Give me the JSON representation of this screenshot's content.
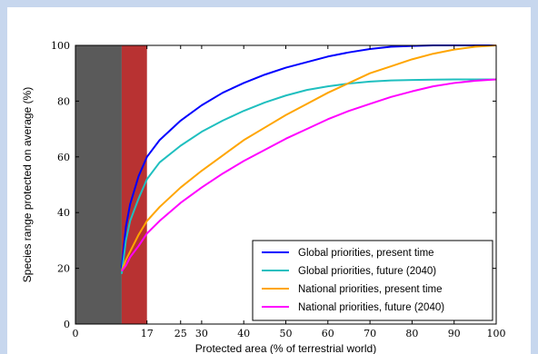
{
  "chart_data": {
    "type": "line",
    "xlabel": "Protected area (% of terrestrial world)",
    "ylabel": "Species range protected on average (%)",
    "xlim": [
      0,
      100
    ],
    "ylim": [
      0,
      100
    ],
    "x_ticks": [
      0,
      17,
      25,
      30,
      40,
      50,
      60,
      70,
      80,
      90,
      100
    ],
    "y_ticks": [
      0,
      20,
      40,
      60,
      80,
      100
    ],
    "x_tick_labels": [
      "0",
      "17",
      "25",
      "30",
      "40",
      "50",
      "60",
      "70",
      "80",
      "90",
      "100"
    ],
    "y_tick_labels": [
      "0",
      "20",
      "40",
      "60",
      "80",
      "100"
    ],
    "shaded_regions": [
      {
        "x": [
          0,
          11
        ],
        "color": "#5a5a5a"
      },
      {
        "x": [
          11,
          17
        ],
        "color": "#b83232"
      }
    ],
    "legend_position": "bottom-right",
    "grid": false,
    "series": [
      {
        "name": "Global priorities, present time",
        "color": "#0000ff",
        "x": [
          11,
          12,
          13,
          15,
          17,
          20,
          25,
          30,
          35,
          40,
          45,
          50,
          55,
          60,
          65,
          70,
          75,
          80,
          85,
          90,
          95,
          100
        ],
        "y": [
          20,
          35,
          43,
          53,
          60,
          66,
          73,
          78.5,
          83,
          86.5,
          89.5,
          92,
          94,
          96,
          97.5,
          98.7,
          99.5,
          99.8,
          100,
          100,
          100,
          100
        ]
      },
      {
        "name": "Global priorities, future (2040)",
        "color": "#1fbfbf",
        "x": [
          11,
          12,
          13,
          15,
          17,
          20,
          25,
          30,
          35,
          40,
          45,
          50,
          55,
          60,
          65,
          70,
          75,
          80,
          85,
          90,
          95,
          100
        ],
        "y": [
          18,
          30,
          37,
          45,
          52,
          58,
          64,
          69,
          73,
          76.5,
          79.5,
          82,
          84,
          85.3,
          86.3,
          87,
          87.4,
          87.6,
          87.7,
          87.8,
          87.8,
          87.8
        ]
      },
      {
        "name": "National priorities, present time",
        "color": "#ffa500",
        "x": [
          11,
          12,
          13,
          15,
          17,
          20,
          25,
          30,
          35,
          40,
          45,
          50,
          55,
          60,
          65,
          70,
          75,
          80,
          85,
          90,
          95,
          100
        ],
        "y": [
          19,
          23,
          26,
          32,
          37,
          42,
          49,
          55,
          60.5,
          66,
          70.5,
          75,
          79,
          83,
          86.5,
          90,
          92.5,
          95,
          97,
          98.5,
          99.5,
          100
        ]
      },
      {
        "name": "National priorities, future (2040)",
        "color": "#ff00ff",
        "x": [
          11,
          12,
          13,
          15,
          17,
          20,
          25,
          30,
          35,
          40,
          45,
          50,
          55,
          60,
          65,
          70,
          75,
          80,
          85,
          90,
          95,
          100
        ],
        "y": [
          19,
          21,
          24,
          28,
          32.5,
          37,
          43.5,
          49,
          54,
          58.5,
          62.5,
          66.5,
          70,
          73.5,
          76.5,
          79,
          81.5,
          83.5,
          85.3,
          86.5,
          87.3,
          87.8
        ]
      }
    ]
  }
}
